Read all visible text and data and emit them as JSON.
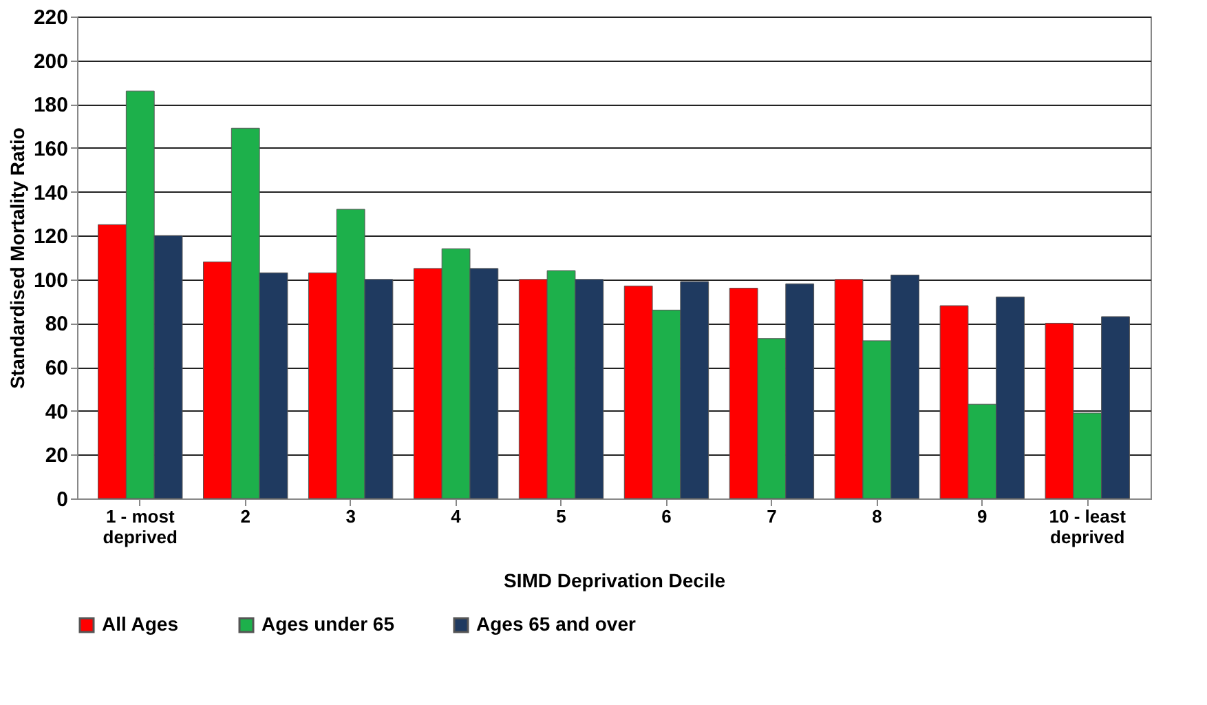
{
  "chart_data": {
    "type": "bar",
    "xlabel": "SIMD Deprivation Decile",
    "ylabel": "Standardised Mortality Ratio",
    "categories": [
      "1 - most deprived",
      "2",
      "3",
      "4",
      "5",
      "6",
      "7",
      "8",
      "9",
      "10 - least deprived"
    ],
    "series": [
      {
        "name": "All Ages",
        "color": "#ff0000",
        "values": [
          125,
          108,
          103,
          105,
          100,
          97,
          96,
          100,
          88,
          80
        ]
      },
      {
        "name": "Ages under 65",
        "color": "#1db04b",
        "values": [
          186,
          169,
          132,
          114,
          104,
          86,
          73,
          72,
          43,
          39
        ]
      },
      {
        "name": "Ages 65 and over",
        "color": "#1f3a60",
        "values": [
          120,
          103,
          100,
          105,
          100,
          99,
          98,
          102,
          92,
          83
        ]
      }
    ],
    "ylim": [
      0,
      220
    ],
    "yticks": [
      0,
      20,
      40,
      60,
      80,
      100,
      120,
      140,
      160,
      180,
      200,
      220
    ],
    "grid": "y",
    "legend": "bottom"
  }
}
